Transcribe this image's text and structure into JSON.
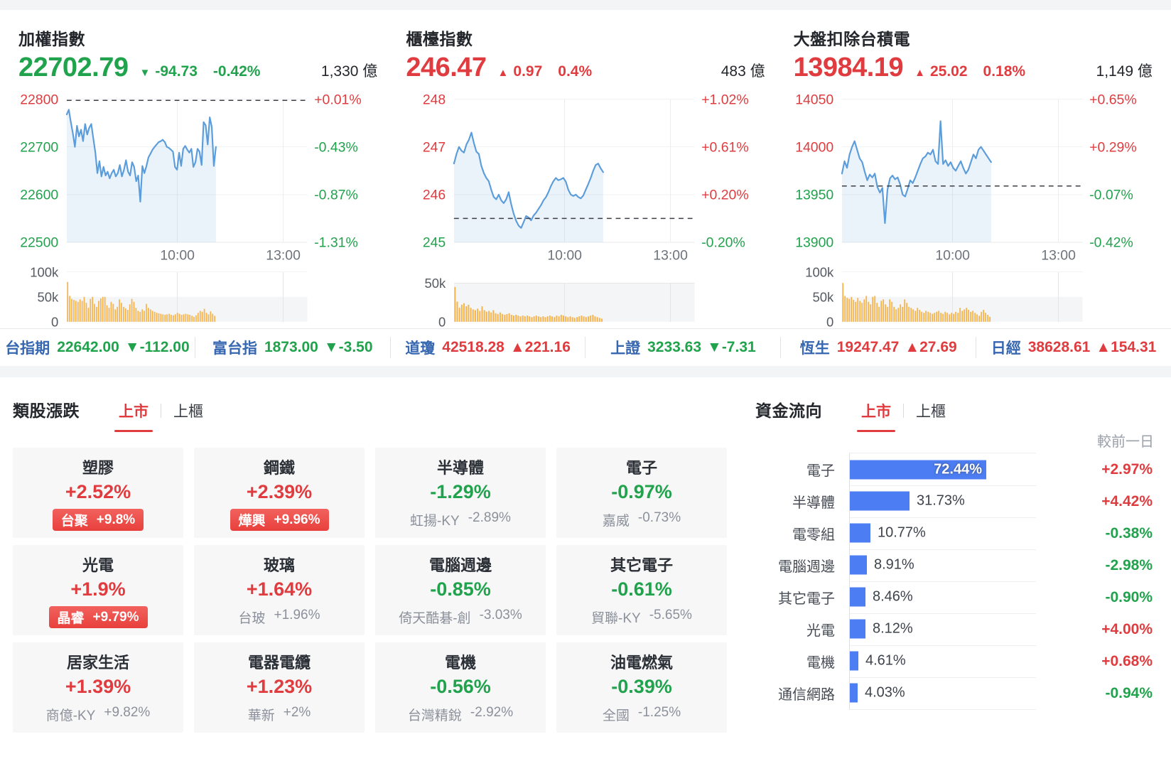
{
  "colors": {
    "up": "#e03c3f",
    "down": "#21a24d",
    "line": "#5b9cdb",
    "line_fill": "rgba(91,156,219,0.13)",
    "volume_bar": "#f6b44e",
    "ticker_label_blue": "#3767b0",
    "badge_bg": "#e8403c",
    "tab_active": "#e03c3f",
    "card_bg": "#f7f7f8"
  },
  "charts": [
    {
      "title": "加權指數",
      "price": "22702.79",
      "dir": "down",
      "arrow": "▼",
      "change": "-94.73",
      "change_pct": "-0.42%",
      "turnover": "1,330 億",
      "type": "line",
      "ylim": [
        22500,
        22800
      ],
      "y_ticks": [
        {
          "label": "22800",
          "v": 22800,
          "cls": "up"
        },
        {
          "label": "22700",
          "v": 22700,
          "cls": "down"
        },
        {
          "label": "22600",
          "v": 22600,
          "cls": "down"
        },
        {
          "label": "22500",
          "v": 22500,
          "cls": "down"
        }
      ],
      "pct_ticks": [
        {
          "label": "+0.01%",
          "cls": "up"
        },
        {
          "label": "-0.43%",
          "cls": "down"
        },
        {
          "label": "-0.87%",
          "cls": "down"
        },
        {
          "label": "-1.31%",
          "cls": "down"
        }
      ],
      "x_ticks": [
        "10:00",
        "13:00"
      ],
      "prev_close": 22797.5,
      "series": [
        22768,
        22778,
        22752,
        22728,
        22700,
        22744,
        22722,
        22736,
        22712,
        22748,
        22726,
        22740,
        22748,
        22718,
        22688,
        22645,
        22670,
        22638,
        22658,
        22640,
        22648,
        22634,
        22645,
        22652,
        22638,
        22645,
        22662,
        22638,
        22652,
        22672,
        22648,
        22640,
        22668,
        22658,
        22628,
        22640,
        22585,
        22660,
        22645,
        22660,
        22678,
        22686,
        22694,
        22700,
        22705,
        22710,
        22712,
        22715,
        22710,
        22700,
        22698,
        22694,
        22690,
        22658,
        22652,
        22688,
        22660,
        22696,
        22702,
        22694,
        22688,
        22696,
        22658,
        22668,
        22696,
        22690,
        22662,
        22752,
        22745,
        22705,
        22762,
        22742,
        22660,
        22700
      ],
      "volume": [
        80,
        52,
        46,
        44,
        42,
        40,
        45,
        42,
        50,
        38,
        28,
        46,
        50,
        36,
        30,
        42,
        47,
        50,
        50,
        33,
        28,
        40,
        36,
        25,
        30,
        45,
        38,
        30,
        27,
        24,
        35,
        46,
        40,
        28,
        22,
        20,
        25,
        22,
        36,
        28,
        25,
        22,
        20,
        18,
        17,
        16,
        15,
        14,
        15,
        16,
        14,
        13,
        15,
        18,
        16,
        14,
        15,
        16,
        15,
        14,
        12,
        10,
        13,
        18,
        22,
        20,
        26,
        18,
        15,
        21,
        16,
        12
      ],
      "vol_max": 100,
      "vol_ticks": [
        {
          "label": "100k",
          "v": 100
        },
        {
          "label": "50k",
          "v": 50
        },
        {
          "label": "0",
          "v": 0
        }
      ]
    },
    {
      "title": "櫃檯指數",
      "price": "246.47",
      "dir": "up",
      "arrow": "▲",
      "change": "0.97",
      "change_pct": "0.4%",
      "turnover": "483 億",
      "type": "line",
      "ylim": [
        245,
        248
      ],
      "y_ticks": [
        {
          "label": "248",
          "v": 248,
          "cls": "up"
        },
        {
          "label": "247",
          "v": 247,
          "cls": "up"
        },
        {
          "label": "246",
          "v": 246,
          "cls": "up"
        },
        {
          "label": "245",
          "v": 245,
          "cls": "down"
        }
      ],
      "pct_ticks": [
        {
          "label": "+1.02%",
          "cls": "up"
        },
        {
          "label": "+0.61%",
          "cls": "up"
        },
        {
          "label": "+0.20%",
          "cls": "up"
        },
        {
          "label": "-0.20%",
          "cls": "down"
        }
      ],
      "x_ticks": [
        "10:00",
        "13:00"
      ],
      "prev_close": 245.5,
      "series": [
        246.65,
        246.85,
        247.0,
        246.92,
        246.88,
        247.05,
        247.15,
        247.3,
        247.08,
        246.9,
        246.85,
        246.6,
        246.45,
        246.35,
        246.28,
        246.1,
        245.95,
        245.9,
        246.0,
        245.88,
        245.82,
        245.9,
        246.05,
        245.8,
        245.6,
        245.45,
        245.35,
        245.3,
        245.42,
        245.55,
        245.52,
        245.46,
        245.56,
        245.62,
        245.7,
        245.78,
        245.88,
        245.95,
        246.05,
        246.18,
        246.28,
        246.35,
        246.3,
        246.32,
        246.35,
        246.27,
        246.1,
        246.0,
        245.97,
        246.0,
        245.95,
        245.92,
        245.98,
        246.1,
        246.22,
        246.35,
        246.5,
        246.62,
        246.65,
        246.55,
        246.47
      ],
      "volume": [
        45,
        26,
        18,
        22,
        24,
        20,
        22,
        18,
        16,
        15,
        17,
        14,
        20,
        15,
        13,
        14,
        12,
        15,
        11,
        10,
        12,
        10,
        9,
        10,
        11,
        9,
        8,
        9,
        8,
        7,
        8,
        7,
        8,
        7,
        6,
        7,
        8,
        7,
        6,
        7,
        6,
        7,
        8,
        7,
        6,
        8,
        7,
        9,
        8,
        7,
        6,
        7,
        6,
        5,
        6,
        7,
        8,
        7,
        6,
        7,
        8,
        9,
        7,
        6,
        5,
        4
      ],
      "vol_max": 50,
      "vol_ticks": [
        {
          "label": "50k",
          "v": 50
        },
        {
          "label": "0",
          "v": 0
        }
      ]
    },
    {
      "title": "大盤扣除台積電",
      "price": "13984.19",
      "dir": "up",
      "arrow": "▲",
      "change": "25.02",
      "change_pct": "0.18%",
      "turnover": "1,149 億",
      "type": "line",
      "ylim": [
        13900,
        14050
      ],
      "y_ticks": [
        {
          "label": "14050",
          "v": 14050,
          "cls": "up"
        },
        {
          "label": "14000",
          "v": 14000,
          "cls": "up"
        },
        {
          "label": "13950",
          "v": 13950,
          "cls": "down"
        },
        {
          "label": "13900",
          "v": 13900,
          "cls": "down"
        }
      ],
      "pct_ticks": [
        {
          "label": "+0.65%",
          "cls": "up"
        },
        {
          "label": "+0.29%",
          "cls": "up"
        },
        {
          "label": "-0.07%",
          "cls": "down"
        },
        {
          "label": "-0.42%",
          "cls": "down"
        }
      ],
      "x_ticks": [
        "10:00",
        "13:00"
      ],
      "prev_close": 13959,
      "series": [
        13972,
        13985,
        13978,
        13992,
        14000,
        14006,
        13997,
        13988,
        13984,
        13974,
        13965,
        13971,
        13968,
        13972,
        13958,
        13952,
        13957,
        13920,
        13955,
        13967,
        13970,
        13966,
        13968,
        13961,
        13950,
        13948,
        13956,
        13965,
        13962,
        13968,
        13975,
        13982,
        13988,
        13990,
        13994,
        13992,
        13997,
        13985,
        13982,
        14027,
        13982,
        13986,
        13980,
        13984,
        13978,
        13975,
        13980,
        13985,
        13978,
        13972,
        13976,
        13984,
        13992,
        13988,
        13997,
        14000,
        13996,
        13992,
        13988,
        13984
      ],
      "volume": [
        78,
        52,
        48,
        46,
        50,
        44,
        40,
        48,
        42,
        38,
        45,
        52,
        40,
        35,
        50,
        52,
        38,
        30,
        42,
        45,
        35,
        30,
        45,
        40,
        30,
        25,
        28,
        35,
        30,
        45,
        38,
        30,
        28,
        25,
        22,
        28,
        24,
        20,
        18,
        22,
        20,
        18,
        16,
        18,
        20,
        22,
        18,
        16,
        20,
        18,
        15,
        18,
        16,
        20,
        18,
        28,
        22,
        25,
        28,
        24,
        20,
        22,
        18,
        15,
        12,
        20,
        24,
        18,
        14,
        10
      ],
      "vol_max": 100,
      "vol_ticks": [
        {
          "label": "100k",
          "v": 100
        },
        {
          "label": "50k",
          "v": 50
        },
        {
          "label": "0",
          "v": 0
        }
      ]
    }
  ],
  "ticker": {
    "items": [
      {
        "label": "台指期",
        "value": "22642.00",
        "change": "▼-112.00",
        "dir": "down"
      },
      {
        "label": "富台指",
        "value": "1873.00",
        "change": "▼-3.50",
        "dir": "down"
      },
      {
        "label": "道瓊",
        "value": "42518.28",
        "change": "▲221.16",
        "dir": "up"
      },
      {
        "label": "上證",
        "value": "3233.63",
        "change": "▼-7.31",
        "dir": "down"
      },
      {
        "label": "恆生",
        "value": "19247.47",
        "change": "▲27.69",
        "dir": "up"
      },
      {
        "label": "日經",
        "value": "38628.61",
        "change": "▲154.31",
        "dir": "up"
      }
    ]
  },
  "sectors": {
    "title": "類股漲跌",
    "tabs": [
      {
        "label": "上市",
        "active": true
      },
      {
        "label": "上櫃",
        "active": false
      }
    ],
    "cards": [
      {
        "name": "塑膠",
        "pct": "+2.52%",
        "dir": "up",
        "sub_name": "台聚",
        "sub_pct": "+9.8%",
        "badge": true
      },
      {
        "name": "鋼鐵",
        "pct": "+2.39%",
        "dir": "up",
        "sub_name": "燁興",
        "sub_pct": "+9.96%",
        "badge": true
      },
      {
        "name": "半導體",
        "pct": "-1.29%",
        "dir": "down",
        "sub_name": "虹揚-KY",
        "sub_pct": "-2.89%",
        "badge": false
      },
      {
        "name": "電子",
        "pct": "-0.97%",
        "dir": "down",
        "sub_name": "嘉威",
        "sub_pct": "-0.73%",
        "badge": false
      },
      {
        "name": "光電",
        "pct": "+1.9%",
        "dir": "up",
        "sub_name": "晶睿",
        "sub_pct": "+9.79%",
        "badge": true
      },
      {
        "name": "玻璃",
        "pct": "+1.64%",
        "dir": "up",
        "sub_name": "台玻",
        "sub_pct": "+1.96%",
        "badge": false
      },
      {
        "name": "電腦週邊",
        "pct": "-0.85%",
        "dir": "down",
        "sub_name": "倚天酷碁-創",
        "sub_pct": "-3.03%",
        "badge": false
      },
      {
        "name": "其它電子",
        "pct": "-0.61%",
        "dir": "down",
        "sub_name": "貿聯-KY",
        "sub_pct": "-5.65%",
        "badge": false
      },
      {
        "name": "居家生活",
        "pct": "+1.39%",
        "dir": "up",
        "sub_name": "商億-KY",
        "sub_pct": "+9.82%",
        "badge": false
      },
      {
        "name": "電器電纜",
        "pct": "+1.23%",
        "dir": "up",
        "sub_name": "華新",
        "sub_pct": "+2%",
        "badge": false
      },
      {
        "name": "電機",
        "pct": "-0.56%",
        "dir": "down",
        "sub_name": "台灣精銳",
        "sub_pct": "-2.92%",
        "badge": false
      },
      {
        "name": "油電燃氣",
        "pct": "-0.39%",
        "dir": "down",
        "sub_name": "全國",
        "sub_pct": "-1.25%",
        "badge": false
      }
    ]
  },
  "fundflow": {
    "title": "資金流向",
    "tabs": [
      {
        "label": "上市",
        "active": true
      },
      {
        "label": "上櫃",
        "active": false
      }
    ],
    "col_header": "較前一日",
    "chart_data": {
      "type": "bar",
      "categories": [
        "電子",
        "半導體",
        "電零組",
        "電腦週邊",
        "其它電子",
        "光電",
        "電機",
        "通信網路"
      ],
      "values": [
        72.44,
        31.73,
        10.77,
        8.91,
        8.46,
        8.12,
        4.61,
        4.03
      ],
      "xlim": [
        0,
        100
      ]
    },
    "rows": [
      {
        "label": "電子",
        "value": 72.44,
        "value_label": "72.44%",
        "change": "+2.97%",
        "dir": "up"
      },
      {
        "label": "半導體",
        "value": 31.73,
        "value_label": "31.73%",
        "change": "+4.42%",
        "dir": "up"
      },
      {
        "label": "電零組",
        "value": 10.77,
        "value_label": "10.77%",
        "change": "-0.38%",
        "dir": "down"
      },
      {
        "label": "電腦週邊",
        "value": 8.91,
        "value_label": "8.91%",
        "change": "-2.98%",
        "dir": "down"
      },
      {
        "label": "其它電子",
        "value": 8.46,
        "value_label": "8.46%",
        "change": "-0.90%",
        "dir": "down"
      },
      {
        "label": "光電",
        "value": 8.12,
        "value_label": "8.12%",
        "change": "+4.00%",
        "dir": "up"
      },
      {
        "label": "電機",
        "value": 4.61,
        "value_label": "4.61%",
        "change": "+0.68%",
        "dir": "up"
      },
      {
        "label": "通信網路",
        "value": 4.03,
        "value_label": "4.03%",
        "change": "-0.94%",
        "dir": "down"
      }
    ]
  }
}
